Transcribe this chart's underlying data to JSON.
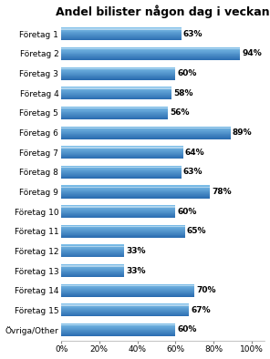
{
  "title": "Andel bilister någon dag i veckan",
  "categories": [
    "Företag 1",
    "Företag 2",
    "Företag 3",
    "Företag 4",
    "Företag 5",
    "Företag 6",
    "Företag 7",
    "Företag 8",
    "Företag 9",
    "Företag 10",
    "Företag 11",
    "Företag 12",
    "Företag 13",
    "Företag 14",
    "Företag 15",
    "Övriga/Other"
  ],
  "values": [
    63,
    94,
    60,
    58,
    56,
    89,
    64,
    63,
    78,
    60,
    65,
    33,
    33,
    70,
    67,
    60
  ],
  "xticks": [
    0,
    20,
    40,
    60,
    80,
    100
  ],
  "xtick_labels": [
    "0%",
    "20%",
    "40%",
    "60%",
    "80%",
    "100%"
  ],
  "value_fontsize": 6.5,
  "label_fontsize": 6.5,
  "title_fontsize": 9,
  "bar_color_light": "#7bbde8",
  "bar_color_mid": "#4a90d0",
  "bar_color_dark": "#2a6cb0",
  "bar_highlight": "#aed4f0",
  "background_color": "#ffffff"
}
